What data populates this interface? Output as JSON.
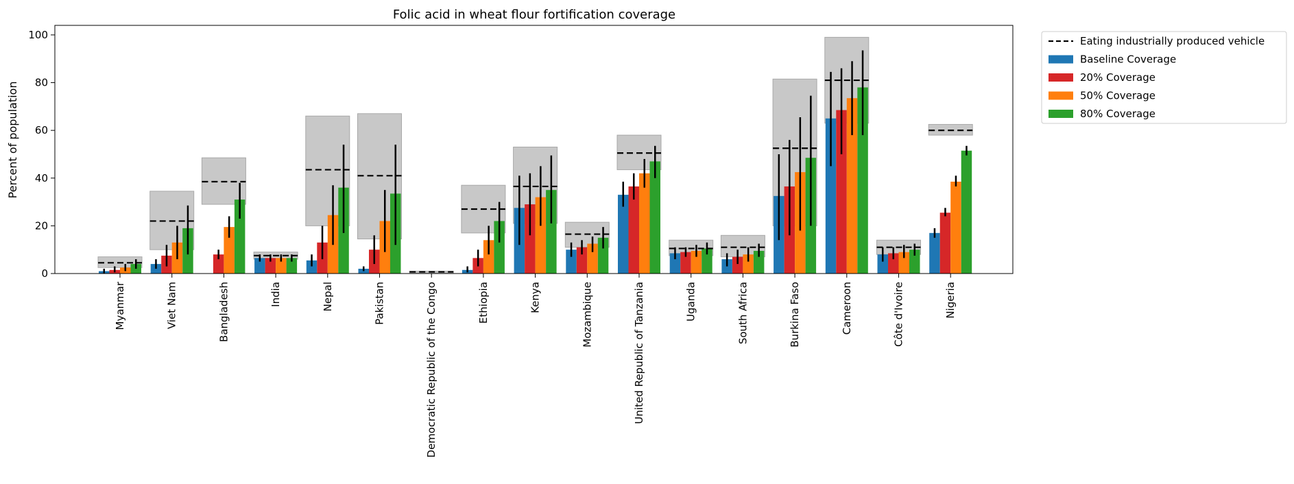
{
  "chart_data": {
    "type": "bar",
    "title": "Folic acid in wheat flour fortification coverage",
    "ylabel": "Percent of population",
    "xlabel": "",
    "ylim": [
      0,
      104
    ],
    "yticks": [
      0,
      20,
      40,
      60,
      80,
      100
    ],
    "categories": [
      "Myanmar",
      "Viet Nam",
      "Bangladesh",
      "India",
      "Nepal",
      "Pakistan",
      "Democratic Republic of the Congo",
      "Ethiopia",
      "Kenya",
      "Mozambique",
      "United Republic of Tanzania",
      "Uganda",
      "South Africa",
      "Burkina Faso",
      "Cameroon",
      "Côte d'Ivoire",
      "Nigeria"
    ],
    "vehicle": {
      "name": "Eating industrially produced vehicle",
      "values": [
        4.5,
        22,
        38.5,
        7.5,
        43.5,
        41,
        0.7,
        27,
        36.5,
        16.5,
        50.5,
        10.5,
        11,
        52.5,
        81,
        11,
        60
      ],
      "lower": [
        2.5,
        10,
        29,
        6,
        20,
        14.5,
        0.3,
        17,
        21,
        11,
        43.5,
        7.5,
        7,
        20,
        63,
        8,
        58
      ],
      "upper": [
        7,
        34.5,
        48.5,
        9,
        66,
        67,
        1,
        37,
        53,
        21.5,
        58,
        14,
        16,
        81.5,
        99,
        14,
        62.5
      ]
    },
    "series": [
      {
        "name": "Baseline Coverage",
        "color": "#1f77b4",
        "values": [
          1,
          4,
          null,
          6.5,
          5.5,
          2,
          0,
          1.5,
          27.5,
          10,
          33,
          8.5,
          6,
          32.5,
          65,
          8,
          17
        ],
        "err_low": [
          0,
          2,
          null,
          5,
          3,
          1,
          0,
          0.5,
          12,
          7,
          28,
          6,
          3,
          14,
          45,
          5,
          15
        ],
        "err_high": [
          2,
          6,
          null,
          8,
          8,
          3,
          0,
          3,
          41,
          13,
          38.5,
          11,
          8.5,
          50,
          84.5,
          11,
          19
        ]
      },
      {
        "name": "20% Coverage",
        "color": "#d62728",
        "values": [
          1.5,
          7.5,
          8,
          6.5,
          13,
          10,
          0,
          6.5,
          29,
          11,
          36.5,
          9,
          7,
          36.5,
          68.5,
          8.5,
          25.5
        ],
        "err_low": [
          0.5,
          3,
          6,
          5,
          6,
          4,
          0,
          3,
          16,
          8,
          31,
          7,
          4,
          16,
          50,
          6,
          24
        ],
        "err_high": [
          3,
          12,
          10,
          8,
          20,
          16,
          0,
          10,
          42,
          14,
          42,
          11,
          10,
          56,
          86,
          11,
          27.5
        ]
      },
      {
        "name": "50% Coverage",
        "color": "#ff7f0e",
        "values": [
          2.5,
          13,
          19.5,
          6.5,
          24.5,
          22,
          0,
          14,
          32,
          12.5,
          42,
          9.5,
          8,
          42.5,
          73.5,
          9,
          38.5
        ],
        "err_low": [
          1,
          6,
          15,
          5,
          12,
          9,
          0,
          8,
          20,
          9,
          36,
          7,
          5,
          18,
          58,
          6.5,
          36.5
        ],
        "err_high": [
          4,
          20,
          24,
          8,
          37,
          35,
          0,
          20,
          45,
          15.5,
          48,
          12,
          11,
          65.5,
          89,
          12,
          41
        ]
      },
      {
        "name": "80% Coverage",
        "color": "#2ca02c",
        "values": [
          4,
          19,
          31,
          6.5,
          36,
          33.5,
          0,
          22,
          35,
          15,
          47,
          10.5,
          9.5,
          48.5,
          78,
          10,
          51.5
        ],
        "err_low": [
          2,
          8,
          23,
          5,
          17,
          12,
          0,
          13,
          21,
          10.5,
          40,
          8,
          7,
          20,
          58,
          7.5,
          49.5
        ],
        "err_high": [
          6,
          28.5,
          38,
          8,
          54,
          54,
          0,
          30,
          49.5,
          19.5,
          53.5,
          13,
          12.5,
          74.5,
          93.5,
          12.5,
          53.5
        ]
      }
    ],
    "legend_position": "outside-right",
    "grid": false
  }
}
